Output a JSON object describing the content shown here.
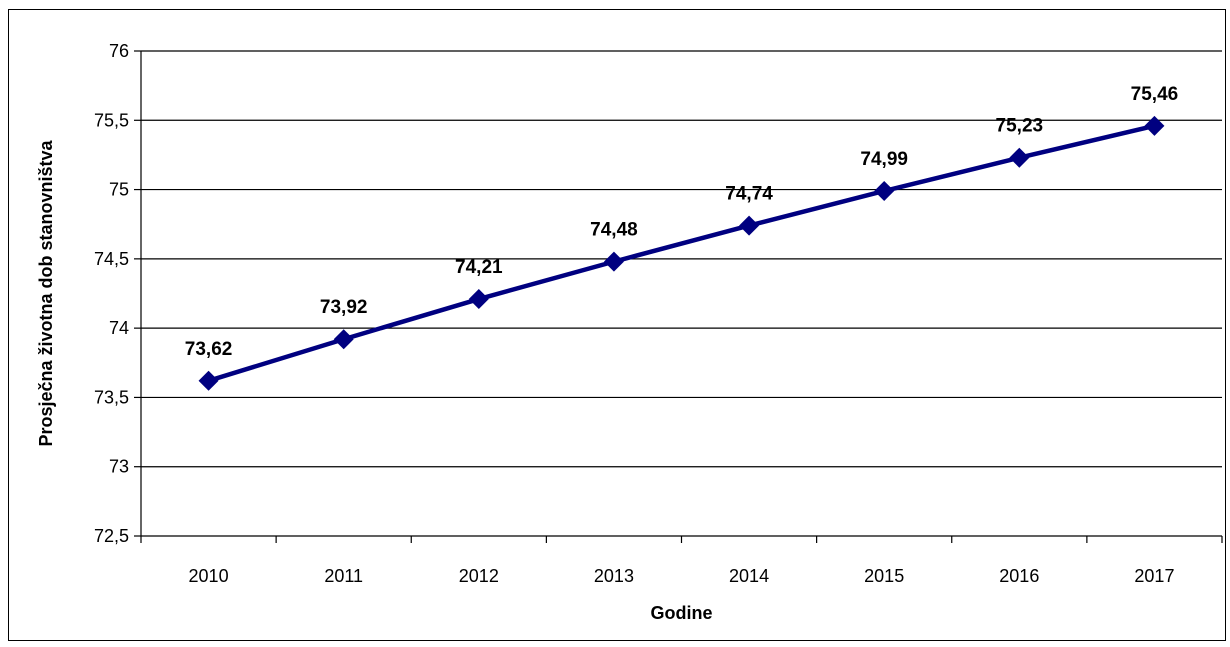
{
  "chart_data": {
    "type": "line",
    "xlabel": "Godine",
    "ylabel": "Prosječna životna dob stanovništva",
    "categories": [
      "2010",
      "2011",
      "2012",
      "2013",
      "2014",
      "2015",
      "2016",
      "2017"
    ],
    "series": [
      {
        "values": [
          73.62,
          73.92,
          74.21,
          74.48,
          74.74,
          74.99,
          75.23,
          75.46
        ],
        "value_labels": [
          "73,62",
          "73,92",
          "74,21",
          "74,48",
          "74,74",
          "74,99",
          "75,23",
          "75,46"
        ],
        "color": "#000080",
        "marker": "diamond"
      }
    ],
    "ylim": [
      72.5,
      76
    ],
    "yticks": [
      72.5,
      73,
      73.5,
      74,
      74.5,
      75,
      75.5,
      76
    ],
    "ytick_labels": [
      "72,5",
      "73",
      "73,5",
      "74",
      "74,5",
      "75",
      "75,5",
      "76"
    ],
    "grid": true,
    "legend": "none"
  }
}
